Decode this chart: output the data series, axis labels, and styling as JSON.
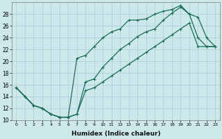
{
  "xlabel": "Humidex (Indice chaleur)",
  "bg_color": "#cce8eb",
  "line_color": "#1a6b5a",
  "grid_color": "#aacdd2",
  "xlim": [
    -0.5,
    23.5
  ],
  "ylim": [
    10,
    30
  ],
  "xticks": [
    0,
    1,
    2,
    3,
    4,
    5,
    6,
    7,
    8,
    9,
    10,
    11,
    12,
    13,
    14,
    15,
    16,
    17,
    18,
    19,
    20,
    21,
    22,
    23
  ],
  "yticks": [
    10,
    12,
    14,
    16,
    18,
    20,
    22,
    24,
    26,
    28
  ],
  "line1_x": [
    0,
    1,
    2,
    3,
    4,
    5,
    6,
    7,
    8,
    9,
    10,
    11,
    12,
    13,
    14,
    15,
    16,
    17,
    18,
    19,
    20,
    21,
    22,
    23
  ],
  "line1_y": [
    15.5,
    14.0,
    12.5,
    12.0,
    11.0,
    10.5,
    10.5,
    11.0,
    16.5,
    17.0,
    19.0,
    20.5,
    22.0,
    23.0,
    24.2,
    25.0,
    25.5,
    27.0,
    28.2,
    29.2,
    28.0,
    27.5,
    24.0,
    22.5
  ],
  "line2_x": [
    0,
    1,
    2,
    3,
    4,
    5,
    6,
    7,
    8,
    9,
    10,
    11,
    12,
    13,
    14,
    15,
    16,
    17,
    18,
    19,
    20,
    21,
    22,
    23
  ],
  "line2_y": [
    15.5,
    14.0,
    12.5,
    12.0,
    11.0,
    10.5,
    10.5,
    20.5,
    21.0,
    22.5,
    24.0,
    25.0,
    25.5,
    27.0,
    27.0,
    27.2,
    28.0,
    28.5,
    28.8,
    29.5,
    28.0,
    24.0,
    22.5,
    22.5
  ],
  "line3_x": [
    0,
    1,
    2,
    3,
    4,
    5,
    6,
    7,
    8,
    9,
    10,
    11,
    12,
    13,
    14,
    15,
    16,
    17,
    18,
    19,
    20,
    21,
    22,
    23
  ],
  "line3_y": [
    15.5,
    14.0,
    12.5,
    12.0,
    11.0,
    10.5,
    10.5,
    11.0,
    15.0,
    15.5,
    16.5,
    17.5,
    18.5,
    19.5,
    20.5,
    21.5,
    22.5,
    23.5,
    24.5,
    25.5,
    26.5,
    22.5,
    22.5,
    22.5
  ]
}
